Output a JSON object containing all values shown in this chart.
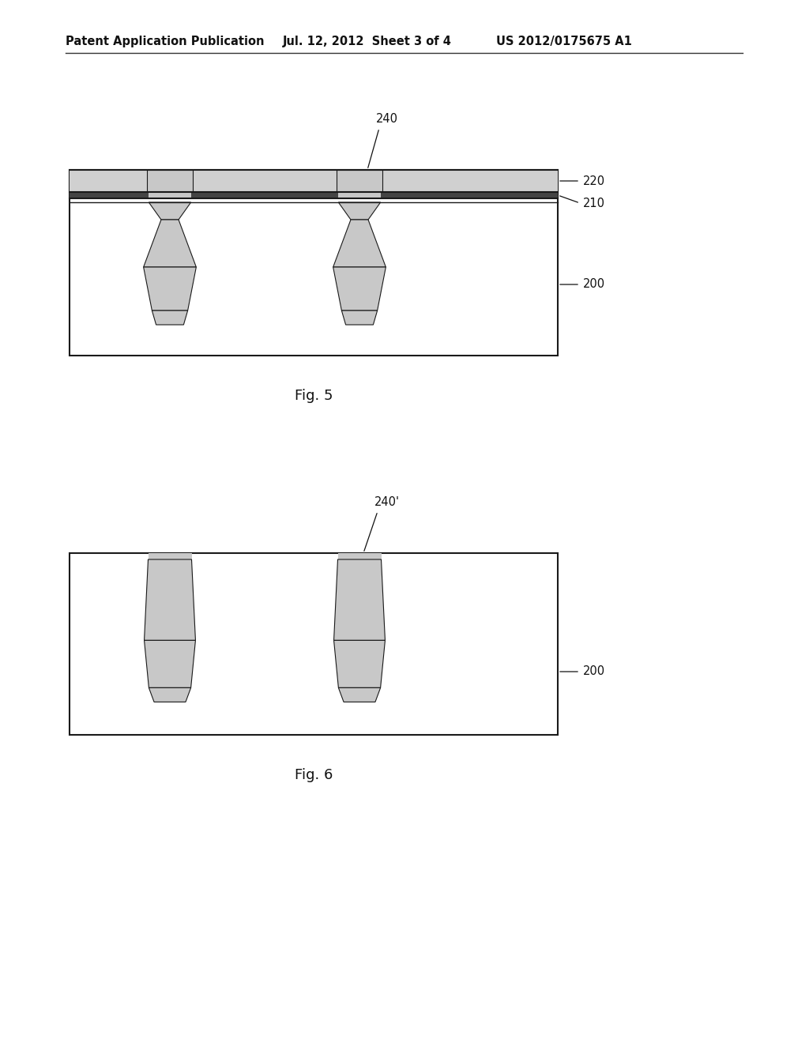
{
  "title_left": "Patent Application Publication",
  "title_center": "Jul. 12, 2012  Sheet 3 of 4",
  "title_right": "US 2012/0175675 A1",
  "fig5_label": "Fig. 5",
  "fig6_label": "Fig. 6",
  "bg_color": "#ffffff",
  "box_color": "#ffffff",
  "box_edge_color": "#1a1a1a",
  "pillar_fill": "#c8c8c8",
  "pillar_edge": "#1a1a1a",
  "label_200": "200",
  "label_210": "210",
  "label_220": "220",
  "label_240": "240",
  "label_240p": "240'",
  "label_200b": "200"
}
